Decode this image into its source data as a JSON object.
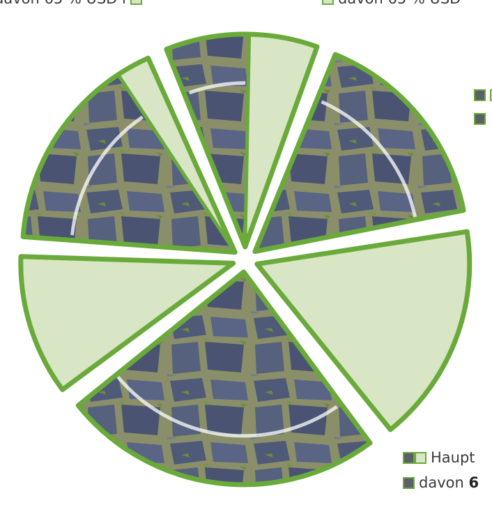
{
  "chart_data": {
    "type": "pie",
    "style": "exploded pie, each slice split into a photo-filled (cobblestone) part and a light-green part",
    "colors": {
      "outline": "#6aaa3a",
      "light_fill": "#d8e6c5",
      "swatch_dark": "#5b5f69",
      "highlight_arc": "#ffffff"
    },
    "slices": [
      {
        "name": "",
        "share_percent": 17.8,
        "inner_percent": 85
      },
      {
        "name": "",
        "share_percent": 12.2,
        "inner_percent": 55
      },
      {
        "name": "",
        "share_percent": 16.4,
        "inner_percent": 100
      },
      {
        "name": "",
        "share_percent": 17.3,
        "inner_percent": 0
      },
      {
        "name": "",
        "share_percent": 25.0,
        "inner_percent": 100
      },
      {
        "name": "",
        "share_percent": 11.3,
        "inner_percent": 0
      }
    ],
    "legend": [
      {
        "position": "top-left",
        "text": "davon 65 % USD i",
        "swatch": "dark"
      },
      {
        "position": "top-center",
        "text": "davon 65 % USD",
        "swatch": "dark"
      },
      {
        "position": "right",
        "text": "",
        "swatch": "dark+light"
      },
      {
        "position": "right",
        "text": "",
        "swatch": "dark"
      },
      {
        "position": "bottom-right",
        "text": "Haupt",
        "swatch": "dark+light"
      },
      {
        "position": "bottom-right",
        "text_prefix": "davon ",
        "text_bold": "6",
        "swatch": "dark"
      }
    ]
  }
}
